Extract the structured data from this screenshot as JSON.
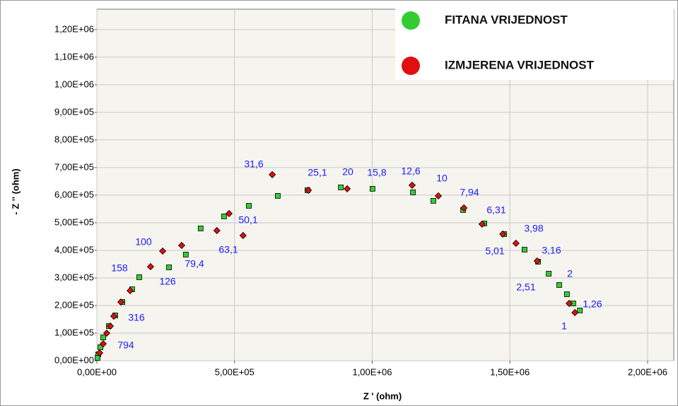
{
  "chart_data": {
    "type": "scatter",
    "xlabel": "Z ' (ohm)",
    "ylabel": "- Z '' (ohm)",
    "xlim": [
      0,
      2095000
    ],
    "ylim": [
      0,
      1274000
    ],
    "xticks": [
      {
        "value": 0,
        "label": "0,00E+00"
      },
      {
        "value": 500000,
        "label": "5,00E+05"
      },
      {
        "value": 1000000,
        "label": "1,00E+06"
      },
      {
        "value": 1500000,
        "label": "1,50E+06"
      },
      {
        "value": 2000000,
        "label": "2,00E+06"
      }
    ],
    "yticks": [
      {
        "value": 0,
        "label": "0,00E+00"
      },
      {
        "value": 100000,
        "label": "1,00E+05"
      },
      {
        "value": 200000,
        "label": "2,00E+05"
      },
      {
        "value": 300000,
        "label": "3,00E+05"
      },
      {
        "value": 400000,
        "label": "4,00E+05"
      },
      {
        "value": 500000,
        "label": "5,00E+05"
      },
      {
        "value": 600000,
        "label": "6,00E+05"
      },
      {
        "value": 700000,
        "label": "7,00E+05"
      },
      {
        "value": 800000,
        "label": "8,00E+05"
      },
      {
        "value": 900000,
        "label": "9,00E+05"
      },
      {
        "value": 1000000,
        "label": "1,00E+06"
      },
      {
        "value": 1100000,
        "label": "1,10E+06"
      },
      {
        "value": 1200000,
        "label": "1,20E+06"
      }
    ],
    "grid": true,
    "legend": "upper right",
    "series": [
      {
        "name": "FITANA VRIJEDNOST",
        "color": "#33cc33",
        "x": [
          1754000,
          1730000,
          1707000,
          1679000,
          1641000,
          1602000,
          1553000,
          1479000,
          1407000,
          1330000,
          1222000,
          1148000,
          1001000,
          886000,
          765000,
          657000,
          552000,
          462000,
          377000,
          323000,
          262000,
          154000,
          128000,
          92400,
          66800,
          43600,
          23100,
          12800,
          5100,
          2600
        ],
        "values": [
          182100,
          207700,
          241000,
          274400,
          315400,
          359000,
          402600,
          459000,
          497400,
          546200,
          579500,
          610300,
          623100,
          628200,
          617900,
          597400,
          561500,
          523100,
          479500,
          384600,
          338500,
          302600,
          259000,
          212800,
          164100,
          125600,
          84600,
          48700,
          23100,
          10300
        ]
      },
      {
        "name": "IZMJERENA VRIJEDNOST",
        "color": "#e01010",
        "x": [
          1736000,
          1715000,
          1599000,
          1522000,
          1474000,
          1399000,
          1333000,
          1240000,
          1145000,
          909000,
          768000,
          637000,
          531000,
          480000,
          436000,
          308000,
          239000,
          195000,
          121000,
          87300,
          61600,
          48800,
          35900,
          23100,
          10300
        ],
        "values": [
          174400,
          207700,
          361500,
          425600,
          459000,
          494900,
          553800,
          597400,
          635900,
          623100,
          617900,
          674400,
          453800,
          533300,
          471800,
          417900,
          397400,
          341000,
          253800,
          212800,
          161500,
          125600,
          100000,
          61500,
          28200
        ]
      }
    ],
    "annotations": [
      "31,6",
      "25,1",
      "20",
      "15,8",
      "12,6",
      "10",
      "7,94",
      "6,31",
      "50,1",
      "63,1",
      "3,98",
      "100",
      "79,4",
      "3,16",
      "5,01",
      "158",
      "126",
      "2",
      "2,51",
      "1,26",
      "316",
      "1",
      "794"
    ]
  }
}
